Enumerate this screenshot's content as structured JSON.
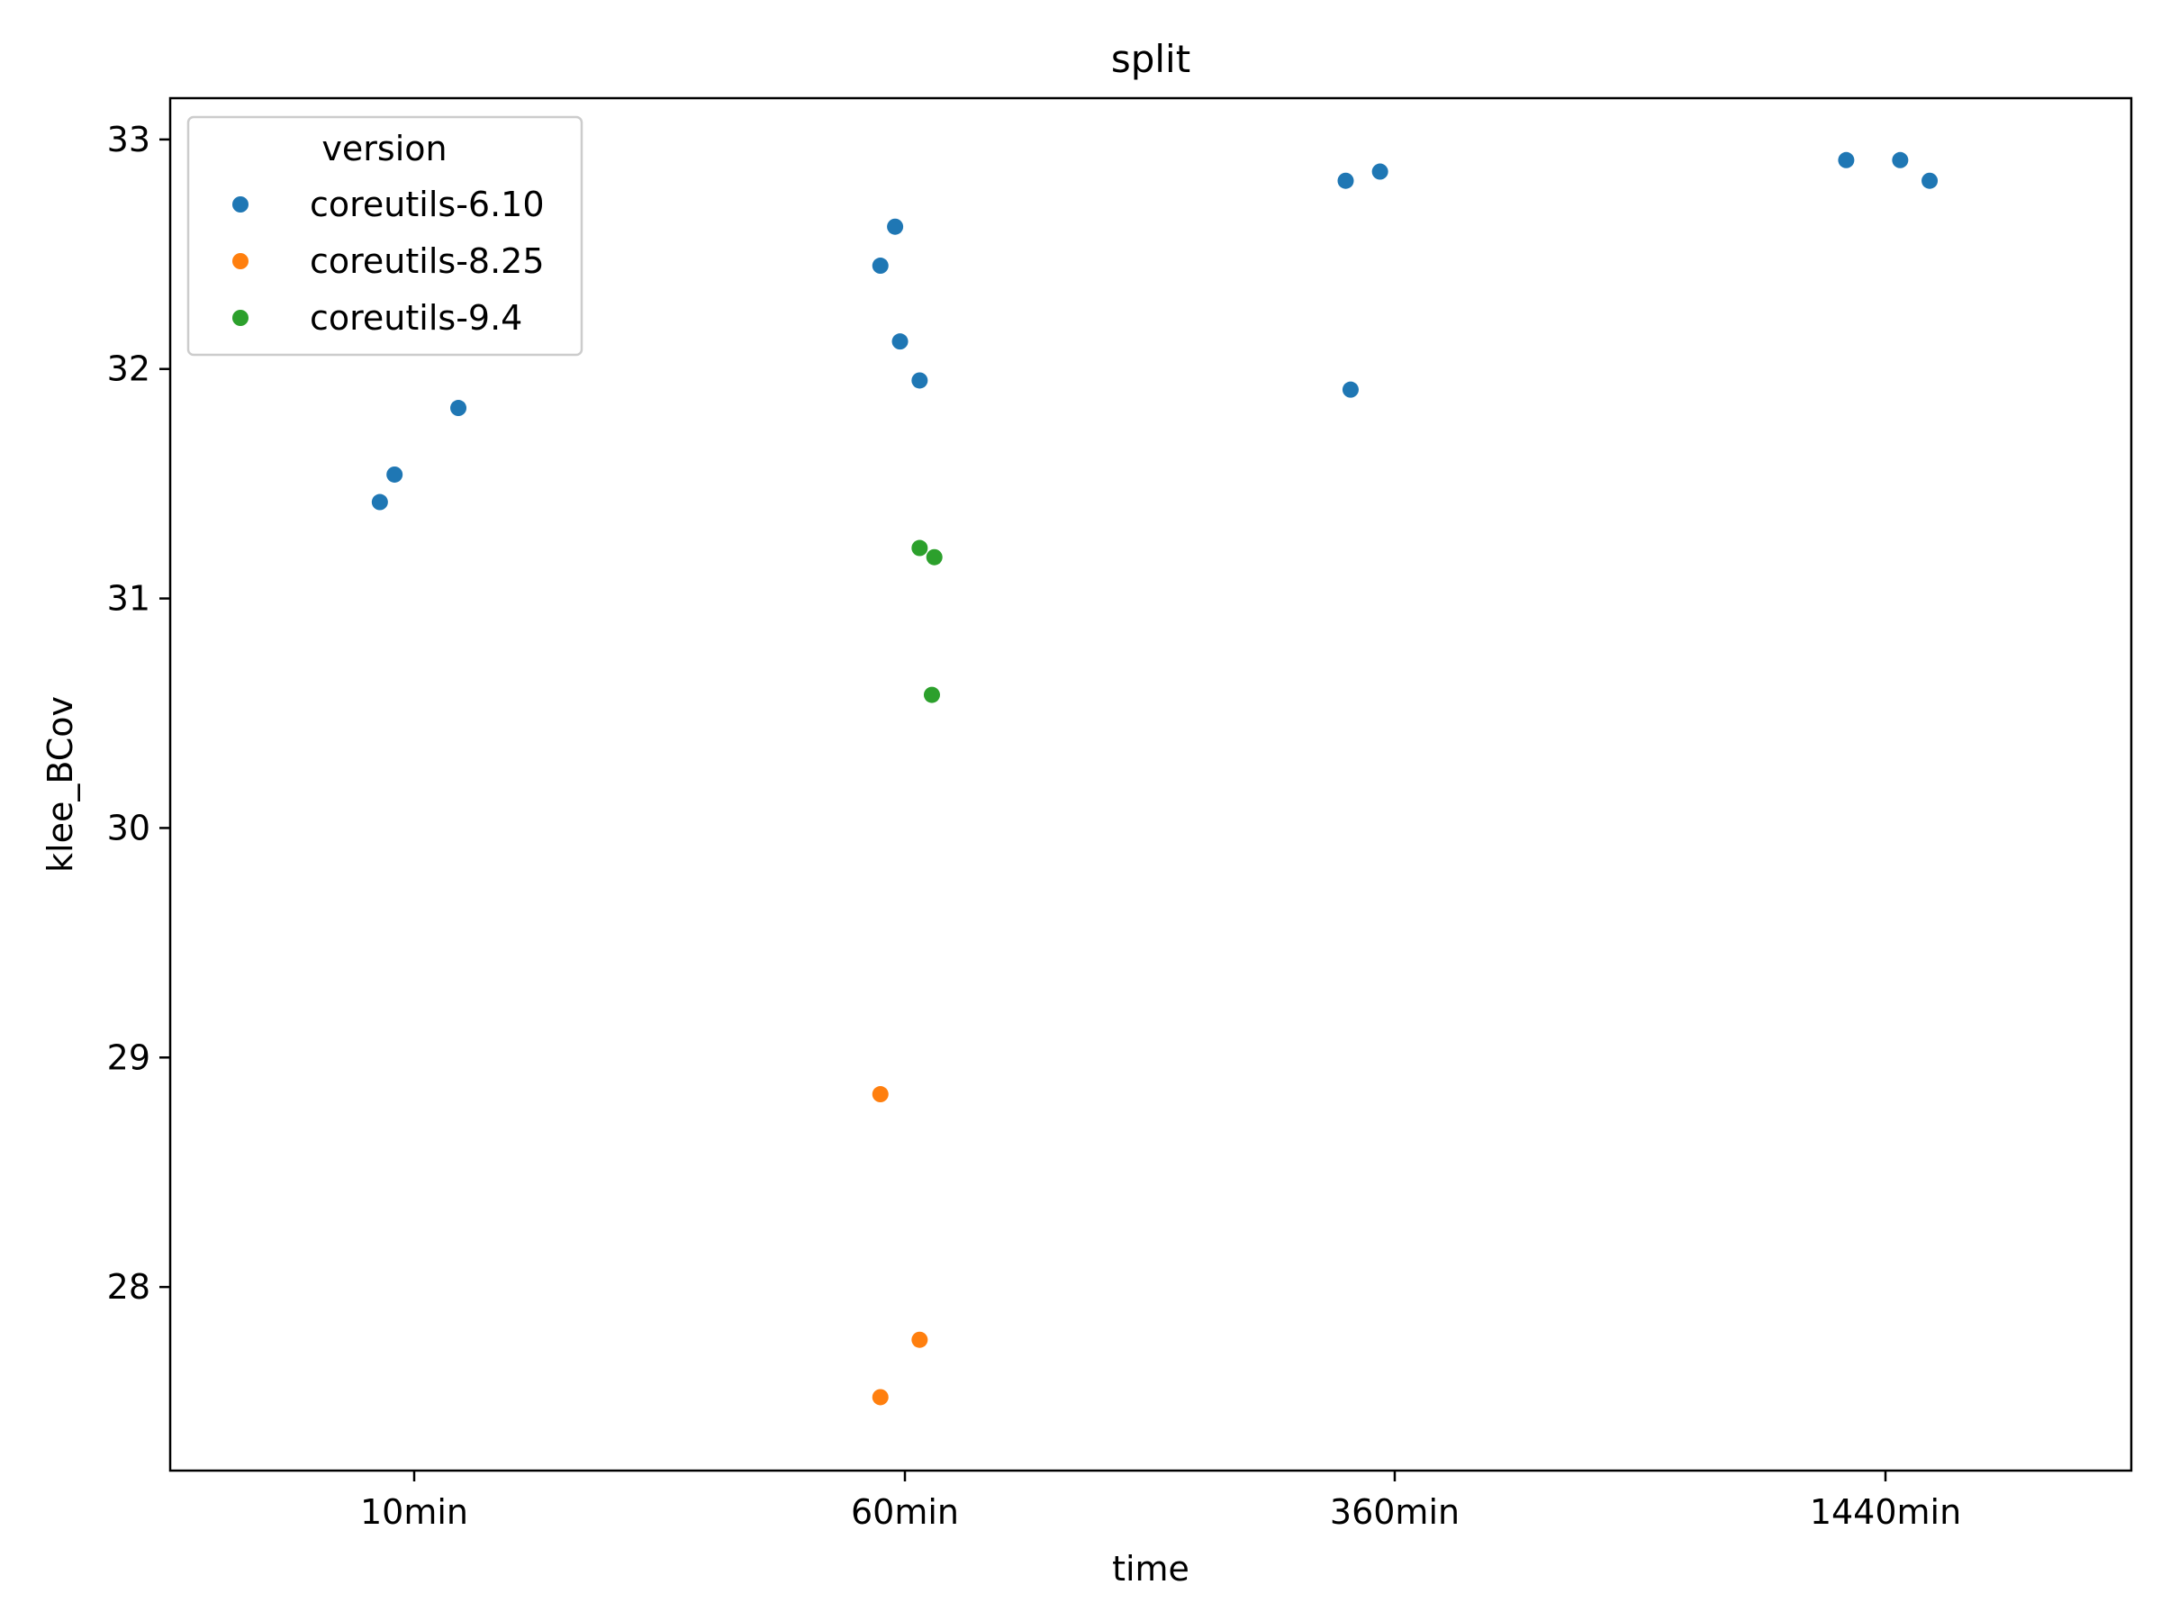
{
  "chart_data": {
    "type": "scatter",
    "title": "split",
    "xlabel": "time",
    "ylabel": "klee_BCov",
    "categories": [
      "10min",
      "60min",
      "360min",
      "1440min"
    ],
    "ylim": [
      27.2,
      33.18
    ],
    "yticks": [
      28,
      29,
      30,
      31,
      32,
      33
    ],
    "grid": false,
    "legend": {
      "title": "version",
      "placement": "top-left"
    },
    "series": [
      {
        "name": "coreutils-6.10",
        "color": "#1f77b4",
        "points": [
          {
            "x": "10min",
            "jitter": -0.07,
            "y": 31.42
          },
          {
            "x": "10min",
            "jitter": -0.04,
            "y": 31.54
          },
          {
            "x": "10min",
            "jitter": 0.09,
            "y": 31.83
          },
          {
            "x": "60min",
            "jitter": -0.05,
            "y": 32.45
          },
          {
            "x": "60min",
            "jitter": -0.02,
            "y": 32.62
          },
          {
            "x": "60min",
            "jitter": -0.01,
            "y": 32.12
          },
          {
            "x": "60min",
            "jitter": 0.03,
            "y": 31.95
          },
          {
            "x": "360min",
            "jitter": -0.1,
            "y": 32.82
          },
          {
            "x": "360min",
            "jitter": -0.03,
            "y": 32.86
          },
          {
            "x": "360min",
            "jitter": -0.09,
            "y": 31.91
          },
          {
            "x": "1440min",
            "jitter": -0.08,
            "y": 32.91
          },
          {
            "x": "1440min",
            "jitter": 0.03,
            "y": 32.91
          },
          {
            "x": "1440min",
            "jitter": 0.09,
            "y": 32.82
          }
        ]
      },
      {
        "name": "coreutils-8.25",
        "color": "#ff7f0e",
        "points": [
          {
            "x": "60min",
            "jitter": -0.05,
            "y": 28.84
          },
          {
            "x": "60min",
            "jitter": 0.03,
            "y": 27.77
          },
          {
            "x": "60min",
            "jitter": -0.05,
            "y": 27.52
          }
        ]
      },
      {
        "name": "coreutils-9.4",
        "color": "#2ca02c",
        "points": [
          {
            "x": "60min",
            "jitter": 0.03,
            "y": 31.22
          },
          {
            "x": "60min",
            "jitter": 0.06,
            "y": 31.18
          },
          {
            "x": "60min",
            "jitter": 0.055,
            "y": 30.58
          }
        ]
      }
    ]
  }
}
